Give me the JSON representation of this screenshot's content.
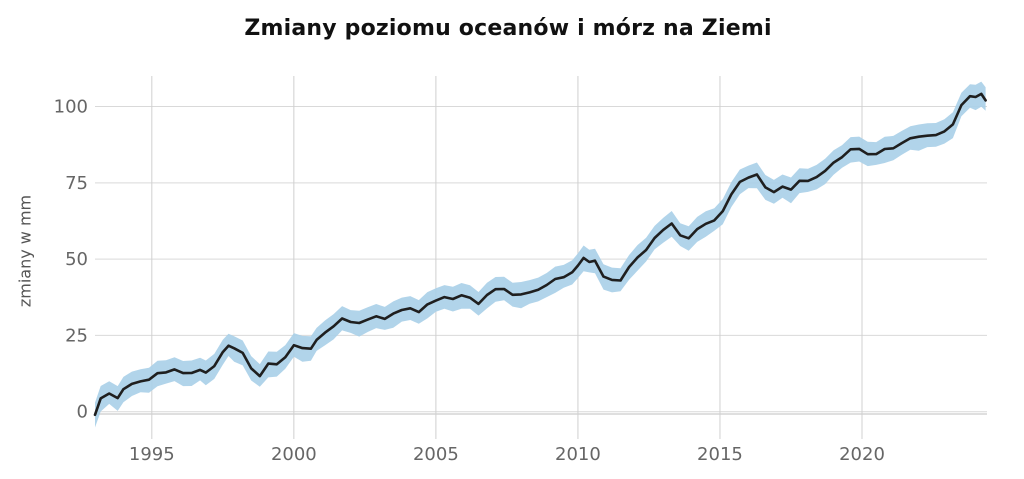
{
  "chart_data": {
    "type": "line",
    "title": "Zmiany poziomu oceanów i mórz na Ziemi",
    "xlabel": "",
    "ylabel": "zmiany w mm",
    "xlim": [
      1993.0,
      2024.4
    ],
    "ylim": [
      -5,
      110
    ],
    "x_ticks": [
      1995,
      2000,
      2005,
      2010,
      2015,
      2020
    ],
    "y_ticks": [
      0,
      25,
      50,
      75,
      100
    ],
    "grid": true,
    "legend": "none",
    "colors": {
      "line": "#1f1f1f",
      "band": "#a9cfe8"
    },
    "series": [
      {
        "x": [
          1993.0,
          1993.2,
          1993.5,
          1993.8,
          1994.0,
          1994.3,
          1994.6,
          1994.9,
          1995.2,
          1995.5,
          1995.8,
          1996.1,
          1996.4,
          1996.7,
          1996.9,
          1997.2,
          1997.5,
          1997.7,
          1997.9,
          1998.2,
          1998.5,
          1998.8,
          1999.1,
          1999.4,
          1999.7,
          2000.0,
          2000.3,
          2000.6,
          2000.8,
          2001.1,
          2001.4,
          2001.7,
          2002.0,
          2002.3,
          2002.6,
          2002.9,
          2003.2,
          2003.5,
          2003.8,
          2004.1,
          2004.4,
          2004.7,
          2005.0,
          2005.3,
          2005.6,
          2005.9,
          2006.2,
          2006.5,
          2006.8,
          2007.1,
          2007.4,
          2007.7,
          2008.0,
          2008.3,
          2008.6,
          2008.9,
          2009.2,
          2009.5,
          2009.8,
          2010.0,
          2010.2,
          2010.4,
          2010.6,
          2010.9,
          2011.2,
          2011.5,
          2011.8,
          2012.1,
          2012.4,
          2012.7,
          2013.0,
          2013.3,
          2013.6,
          2013.9,
          2014.2,
          2014.5,
          2014.8,
          2015.1,
          2015.4,
          2015.7,
          2016.0,
          2016.3,
          2016.6,
          2016.9,
          2017.2,
          2017.5,
          2017.8,
          2018.1,
          2018.4,
          2018.7,
          2019.0,
          2019.3,
          2019.6,
          2019.9,
          2020.2,
          2020.5,
          2020.8,
          2021.1,
          2021.4,
          2021.7,
          2022.0,
          2022.3,
          2022.6,
          2022.9,
          2023.2,
          2023.5,
          2023.8,
          2024.0,
          2024.2,
          2024.35
        ],
        "values": [
          -1,
          4,
          6,
          5,
          7,
          9,
          10,
          11,
          12,
          13,
          14,
          13,
          12,
          14,
          13,
          15,
          19,
          22,
          21,
          19,
          14,
          12,
          16,
          15,
          18,
          22,
          21,
          20,
          24,
          26,
          28,
          30,
          30,
          29,
          30,
          31,
          31,
          32,
          33,
          34,
          33,
          35,
          36,
          38,
          37,
          38,
          37,
          36,
          38,
          40,
          40,
          39,
          38,
          39,
          40,
          42,
          43,
          44,
          46,
          48,
          50,
          49,
          50,
          44,
          43,
          43,
          48,
          50,
          53,
          57,
          60,
          61,
          58,
          57,
          60,
          61,
          63,
          66,
          71,
          75,
          77,
          78,
          73,
          72,
          74,
          73,
          75,
          76,
          77,
          79,
          81,
          84,
          86,
          86,
          84,
          85,
          86,
          86,
          88,
          90,
          90,
          90,
          91,
          92,
          94,
          100,
          104,
          103,
          104,
          102
        ],
        "uncertainty": 4
      }
    ]
  }
}
